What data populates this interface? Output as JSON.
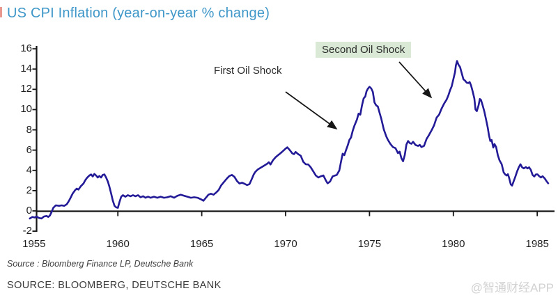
{
  "page": {
    "title": "US CPI Inflation (year-on-year % change)",
    "title_color": "#3e97c8"
  },
  "footer": {
    "source_italic": "Source : Bloomberg Finance LP, Deutsche Bank",
    "source_caps": "SOURCE: BLOOMBERG, DEUTSCHE BANK",
    "watermark": "@智通财经APP"
  },
  "chart_data": {
    "type": "line",
    "title": "US CPI Inflation (year-on-year % change)",
    "xlabel": "",
    "ylabel": "",
    "xlim": [
      1954.7,
      1986
    ],
    "ylim": [
      -2,
      16
    ],
    "x_ticks": [
      1955,
      1960,
      1965,
      1970,
      1975,
      1980,
      1985
    ],
    "y_ticks": [
      16,
      14,
      12,
      10,
      8,
      6,
      4,
      2,
      0,
      -2
    ],
    "grid": false,
    "legend": "none",
    "line_color": "#221a96",
    "axis_color": "#161616",
    "annotations": [
      {
        "text": "First Oil Shock",
        "highlight": false,
        "arrow_points_to_year": 1973.2
      },
      {
        "text": "Second Oil Shock",
        "highlight": true,
        "highlight_color": "#d9e9d5",
        "arrow_points_to_year": 1978.9
      }
    ],
    "series": [
      {
        "name": "US CPI inflation (year-on-year % change)",
        "points": [
          [
            1954.75,
            -0.75
          ],
          [
            1954.9,
            -0.6
          ],
          [
            1955.05,
            -0.65
          ],
          [
            1955.15,
            -0.55
          ],
          [
            1955.3,
            -0.7
          ],
          [
            1955.45,
            -0.75
          ],
          [
            1955.6,
            -0.55
          ],
          [
            1955.75,
            -0.5
          ],
          [
            1955.85,
            -0.6
          ],
          [
            1955.95,
            -0.45
          ],
          [
            1956.05,
            -0.1
          ],
          [
            1956.15,
            0.3
          ],
          [
            1956.3,
            0.55
          ],
          [
            1956.5,
            0.5
          ],
          [
            1956.65,
            0.55
          ],
          [
            1956.8,
            0.5
          ],
          [
            1956.95,
            0.65
          ],
          [
            1957.05,
            0.9
          ],
          [
            1957.15,
            1.2
          ],
          [
            1957.3,
            1.7
          ],
          [
            1957.45,
            2.05
          ],
          [
            1957.55,
            2.2
          ],
          [
            1957.65,
            2.1
          ],
          [
            1957.8,
            2.45
          ],
          [
            1957.95,
            2.7
          ],
          [
            1958.05,
            3.0
          ],
          [
            1958.15,
            3.25
          ],
          [
            1958.3,
            3.5
          ],
          [
            1958.4,
            3.6
          ],
          [
            1958.5,
            3.4
          ],
          [
            1958.6,
            3.65
          ],
          [
            1958.7,
            3.5
          ],
          [
            1958.8,
            3.3
          ],
          [
            1958.9,
            3.45
          ],
          [
            1959.0,
            3.3
          ],
          [
            1959.1,
            3.55
          ],
          [
            1959.2,
            3.6
          ],
          [
            1959.3,
            3.3
          ],
          [
            1959.4,
            2.9
          ],
          [
            1959.5,
            2.35
          ],
          [
            1959.6,
            1.7
          ],
          [
            1959.7,
            1.0
          ],
          [
            1959.8,
            0.5
          ],
          [
            1959.9,
            0.35
          ],
          [
            1960.0,
            0.3
          ],
          [
            1960.1,
            0.9
          ],
          [
            1960.2,
            1.4
          ],
          [
            1960.3,
            1.55
          ],
          [
            1960.45,
            1.4
          ],
          [
            1960.6,
            1.55
          ],
          [
            1960.75,
            1.45
          ],
          [
            1960.9,
            1.55
          ],
          [
            1961.05,
            1.45
          ],
          [
            1961.2,
            1.55
          ],
          [
            1961.35,
            1.35
          ],
          [
            1961.5,
            1.45
          ],
          [
            1961.65,
            1.3
          ],
          [
            1961.8,
            1.4
          ],
          [
            1961.95,
            1.3
          ],
          [
            1962.15,
            1.4
          ],
          [
            1962.35,
            1.3
          ],
          [
            1962.55,
            1.4
          ],
          [
            1962.75,
            1.3
          ],
          [
            1962.95,
            1.35
          ],
          [
            1963.15,
            1.45
          ],
          [
            1963.35,
            1.3
          ],
          [
            1963.55,
            1.5
          ],
          [
            1963.75,
            1.6
          ],
          [
            1963.95,
            1.5
          ],
          [
            1964.15,
            1.4
          ],
          [
            1964.35,
            1.3
          ],
          [
            1964.55,
            1.35
          ],
          [
            1964.75,
            1.3
          ],
          [
            1964.95,
            1.15
          ],
          [
            1965.1,
            1.0
          ],
          [
            1965.25,
            1.3
          ],
          [
            1965.4,
            1.6
          ],
          [
            1965.55,
            1.7
          ],
          [
            1965.7,
            1.6
          ],
          [
            1965.85,
            1.8
          ],
          [
            1966.0,
            2.05
          ],
          [
            1966.15,
            2.5
          ],
          [
            1966.3,
            2.8
          ],
          [
            1966.5,
            3.2
          ],
          [
            1966.65,
            3.45
          ],
          [
            1966.8,
            3.55
          ],
          [
            1966.95,
            3.35
          ],
          [
            1967.1,
            2.95
          ],
          [
            1967.25,
            2.7
          ],
          [
            1967.4,
            2.78
          ],
          [
            1967.55,
            2.68
          ],
          [
            1967.7,
            2.55
          ],
          [
            1967.85,
            2.65
          ],
          [
            1968.0,
            3.2
          ],
          [
            1968.1,
            3.6
          ],
          [
            1968.2,
            3.87
          ],
          [
            1968.35,
            4.1
          ],
          [
            1968.5,
            4.25
          ],
          [
            1968.7,
            4.45
          ],
          [
            1968.9,
            4.65
          ],
          [
            1969.0,
            4.8
          ],
          [
            1969.1,
            4.58
          ],
          [
            1969.25,
            5.0
          ],
          [
            1969.4,
            5.3
          ],
          [
            1969.55,
            5.5
          ],
          [
            1969.7,
            5.7
          ],
          [
            1969.85,
            5.92
          ],
          [
            1970.0,
            6.15
          ],
          [
            1970.1,
            6.28
          ],
          [
            1970.25,
            6.0
          ],
          [
            1970.4,
            5.68
          ],
          [
            1970.5,
            5.6
          ],
          [
            1970.6,
            5.82
          ],
          [
            1970.75,
            5.6
          ],
          [
            1970.9,
            5.45
          ],
          [
            1971.05,
            4.85
          ],
          [
            1971.2,
            4.6
          ],
          [
            1971.35,
            4.58
          ],
          [
            1971.5,
            4.3
          ],
          [
            1971.65,
            3.9
          ],
          [
            1971.8,
            3.5
          ],
          [
            1971.95,
            3.3
          ],
          [
            1972.1,
            3.42
          ],
          [
            1972.25,
            3.5
          ],
          [
            1972.4,
            3.0
          ],
          [
            1972.5,
            2.72
          ],
          [
            1972.65,
            2.9
          ],
          [
            1972.8,
            3.4
          ],
          [
            1972.95,
            3.5
          ],
          [
            1973.05,
            3.55
          ],
          [
            1973.2,
            4.0
          ],
          [
            1973.3,
            4.85
          ],
          [
            1973.4,
            5.65
          ],
          [
            1973.5,
            5.5
          ],
          [
            1973.6,
            6.0
          ],
          [
            1973.7,
            6.45
          ],
          [
            1973.8,
            7.0
          ],
          [
            1973.9,
            7.25
          ],
          [
            1974.0,
            7.9
          ],
          [
            1974.1,
            8.4
          ],
          [
            1974.25,
            9.0
          ],
          [
            1974.35,
            9.6
          ],
          [
            1974.45,
            9.5
          ],
          [
            1974.55,
            10.4
          ],
          [
            1974.65,
            11.1
          ],
          [
            1974.75,
            11.3
          ],
          [
            1974.82,
            11.8
          ],
          [
            1974.9,
            12.05
          ],
          [
            1975.0,
            12.25
          ],
          [
            1975.1,
            12.1
          ],
          [
            1975.2,
            11.75
          ],
          [
            1975.3,
            10.7
          ],
          [
            1975.4,
            10.42
          ],
          [
            1975.5,
            10.3
          ],
          [
            1975.6,
            9.7
          ],
          [
            1975.7,
            9.1
          ],
          [
            1975.85,
            8.05
          ],
          [
            1976.0,
            7.35
          ],
          [
            1976.1,
            7.0
          ],
          [
            1976.25,
            6.6
          ],
          [
            1976.4,
            6.3
          ],
          [
            1976.55,
            6.2
          ],
          [
            1976.7,
            5.7
          ],
          [
            1976.8,
            5.85
          ],
          [
            1976.9,
            5.2
          ],
          [
            1977.0,
            4.9
          ],
          [
            1977.1,
            5.5
          ],
          [
            1977.2,
            6.55
          ],
          [
            1977.3,
            6.9
          ],
          [
            1977.4,
            6.7
          ],
          [
            1977.5,
            6.62
          ],
          [
            1977.6,
            6.82
          ],
          [
            1977.75,
            6.5
          ],
          [
            1977.9,
            6.42
          ],
          [
            1978.0,
            6.52
          ],
          [
            1978.1,
            6.3
          ],
          [
            1978.25,
            6.42
          ],
          [
            1978.4,
            7.1
          ],
          [
            1978.55,
            7.5
          ],
          [
            1978.7,
            7.95
          ],
          [
            1978.85,
            8.45
          ],
          [
            1979.0,
            9.2
          ],
          [
            1979.15,
            9.5
          ],
          [
            1979.3,
            10.1
          ],
          [
            1979.45,
            10.6
          ],
          [
            1979.6,
            11.0
          ],
          [
            1979.7,
            11.4
          ],
          [
            1979.8,
            11.9
          ],
          [
            1979.9,
            12.3
          ],
          [
            1980.0,
            13.0
          ],
          [
            1980.1,
            13.7
          ],
          [
            1980.15,
            14.35
          ],
          [
            1980.22,
            14.8
          ],
          [
            1980.3,
            14.45
          ],
          [
            1980.4,
            14.2
          ],
          [
            1980.5,
            13.6
          ],
          [
            1980.6,
            13.0
          ],
          [
            1980.7,
            12.85
          ],
          [
            1980.8,
            12.65
          ],
          [
            1980.9,
            12.62
          ],
          [
            1980.97,
            12.72
          ],
          [
            1981.05,
            12.4
          ],
          [
            1981.15,
            11.8
          ],
          [
            1981.25,
            11.1
          ],
          [
            1981.32,
            10.0
          ],
          [
            1981.4,
            9.85
          ],
          [
            1981.5,
            10.4
          ],
          [
            1981.58,
            11.05
          ],
          [
            1981.65,
            10.95
          ],
          [
            1981.75,
            10.4
          ],
          [
            1981.85,
            9.8
          ],
          [
            1981.95,
            9.0
          ],
          [
            1982.05,
            8.2
          ],
          [
            1982.12,
            7.5
          ],
          [
            1982.2,
            6.9
          ],
          [
            1982.28,
            7.0
          ],
          [
            1982.38,
            6.25
          ],
          [
            1982.45,
            6.6
          ],
          [
            1982.55,
            6.3
          ],
          [
            1982.65,
            5.5
          ],
          [
            1982.75,
            5.0
          ],
          [
            1982.88,
            4.6
          ],
          [
            1983.0,
            3.8
          ],
          [
            1983.1,
            3.58
          ],
          [
            1983.18,
            3.5
          ],
          [
            1983.25,
            3.62
          ],
          [
            1983.32,
            3.3
          ],
          [
            1983.42,
            2.62
          ],
          [
            1983.5,
            2.5
          ],
          [
            1983.6,
            2.95
          ],
          [
            1983.7,
            3.4
          ],
          [
            1983.8,
            3.9
          ],
          [
            1983.9,
            4.3
          ],
          [
            1984.0,
            4.6
          ],
          [
            1984.1,
            4.3
          ],
          [
            1984.2,
            4.2
          ],
          [
            1984.32,
            4.32
          ],
          [
            1984.42,
            4.2
          ],
          [
            1984.52,
            4.3
          ],
          [
            1984.62,
            4.05
          ],
          [
            1984.72,
            3.55
          ],
          [
            1984.82,
            3.4
          ],
          [
            1984.92,
            3.6
          ],
          [
            1985.02,
            3.6
          ],
          [
            1985.12,
            3.42
          ],
          [
            1985.22,
            3.3
          ],
          [
            1985.32,
            3.42
          ],
          [
            1985.45,
            3.2
          ],
          [
            1985.55,
            2.95
          ],
          [
            1985.65,
            2.72
          ]
        ]
      }
    ]
  }
}
